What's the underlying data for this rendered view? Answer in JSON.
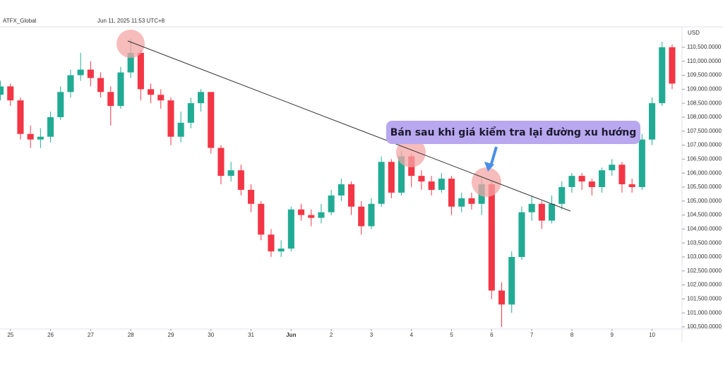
{
  "chart_data": {
    "type": "candlestick",
    "symbol": "ATFX_Global",
    "timestamp": "Jun 11, 2025 11:53 UTC+8",
    "currency": "USD",
    "annotation": "Bán sau khi giá kiểm tra lại đường xu hướng",
    "up_color": "#22ab94",
    "down_color": "#f23645",
    "grid": false,
    "xlim": [
      -0.26,
      16.73
    ],
    "xticks": [
      {
        "value": 0,
        "label": "25"
      },
      {
        "value": 1,
        "label": "26"
      },
      {
        "value": 2,
        "label": "27"
      },
      {
        "value": 3,
        "label": "28"
      },
      {
        "value": 4,
        "label": "29"
      },
      {
        "value": 5,
        "label": "30"
      },
      {
        "value": 6,
        "label": "31"
      },
      {
        "value": 7,
        "label": "Jun"
      },
      {
        "value": 8,
        "label": "2"
      },
      {
        "value": 9,
        "label": "3"
      },
      {
        "value": 10,
        "label": "4"
      },
      {
        "value": 11,
        "label": "5"
      },
      {
        "value": 12,
        "label": "6"
      },
      {
        "value": 13,
        "label": "7"
      },
      {
        "value": 14,
        "label": "8"
      },
      {
        "value": 15,
        "label": "9"
      },
      {
        "value": 16,
        "label": "10"
      }
    ],
    "ylim": [
      100450,
      111180
    ],
    "yticks": [
      {
        "value": 100500,
        "label": "100,500.0000"
      },
      {
        "value": 101000,
        "label": "101,000.0000"
      },
      {
        "value": 101500,
        "label": "101,500.0000"
      },
      {
        "value": 102000,
        "label": "102,000.0000"
      },
      {
        "value": 102500,
        "label": "102,500.0000"
      },
      {
        "value": 103000,
        "label": "103,000.0000"
      },
      {
        "value": 103500,
        "label": "103,500.0000"
      },
      {
        "value": 104000,
        "label": "104,000.0000"
      },
      {
        "value": 104500,
        "label": "104,500.0000"
      },
      {
        "value": 105000,
        "label": "105,000.0000"
      },
      {
        "value": 105500,
        "label": "105,500.0000"
      },
      {
        "value": 106000,
        "label": "106,000.0000"
      },
      {
        "value": 106500,
        "label": "106,500.0000"
      },
      {
        "value": 107000,
        "label": "107,000.0000"
      },
      {
        "value": 107500,
        "label": "107,500.0000"
      },
      {
        "value": 108000,
        "label": "108,000.0000"
      },
      {
        "value": 108500,
        "label": "108,500.0000"
      },
      {
        "value": 109000,
        "label": "109,000.0000"
      },
      {
        "value": 109500,
        "label": "109,500.0000"
      },
      {
        "value": 110000,
        "label": "110,000.0000"
      },
      {
        "value": 110500,
        "label": "110,500.0000"
      }
    ],
    "x": [
      -0.25,
      0,
      0.25,
      0.5,
      0.75,
      1,
      1.25,
      1.5,
      1.75,
      2,
      2.25,
      2.5,
      2.75,
      3,
      3.25,
      3.5,
      3.75,
      4,
      4.25,
      4.5,
      4.75,
      5,
      5.25,
      5.5,
      5.75,
      6,
      6.25,
      6.5,
      6.75,
      7,
      7.25,
      7.5,
      7.75,
      8,
      8.25,
      8.5,
      8.75,
      9,
      9.25,
      9.5,
      9.75,
      10,
      10.25,
      10.5,
      10.75,
      11,
      11.25,
      11.5,
      11.75,
      12,
      12.25,
      12.5,
      12.75,
      13,
      13.25,
      13.5,
      13.75,
      14,
      14.25,
      14.5,
      14.75,
      15,
      15.25,
      15.5,
      15.75,
      16,
      16.25,
      16.5
    ],
    "open": [
      108800,
      109100,
      108600,
      107400,
      107200,
      107300,
      108000,
      108900,
      109500,
      109700,
      109400,
      108900,
      108400,
      109600,
      110300,
      109000,
      108800,
      108600,
      107300,
      107800,
      108500,
      108900,
      106900,
      105900,
      106100,
      105400,
      104900,
      103800,
      103200,
      103300,
      104700,
      104500,
      104400,
      104600,
      105200,
      105600,
      104800,
      104100,
      104900,
      106400,
      105300,
      106600,
      105900,
      105700,
      105400,
      105800,
      104800,
      105100,
      104900,
      105600,
      101800,
      101300,
      103000,
      104600,
      104900,
      104300,
      104900,
      105500,
      105900,
      105700,
      105500,
      106100,
      106300,
      105600,
      105500,
      107200,
      108500,
      110500
    ],
    "high": [
      109300,
      109200,
      108700,
      107700,
      107600,
      108200,
      109100,
      109700,
      110300,
      110000,
      109600,
      109100,
      109800,
      110800,
      110400,
      109200,
      109000,
      108700,
      108200,
      108700,
      109000,
      108900,
      107000,
      106400,
      106300,
      105600,
      105000,
      104000,
      103600,
      104800,
      104900,
      104700,
      104900,
      105400,
      105800,
      105700,
      105000,
      105100,
      106600,
      106500,
      106800,
      106700,
      106100,
      105900,
      106000,
      105900,
      105300,
      105300,
      105800,
      105700,
      102100,
      103200,
      104800,
      105200,
      105000,
      105200,
      105700,
      106000,
      106000,
      105800,
      106200,
      106500,
      106400,
      105800,
      107400,
      108700,
      110700,
      110600
    ],
    "low": [
      108600,
      108400,
      107200,
      106900,
      106900,
      107100,
      107900,
      108700,
      109300,
      109100,
      108700,
      107700,
      108300,
      109400,
      108600,
      108500,
      108300,
      107000,
      107100,
      107600,
      108200,
      106700,
      105600,
      105700,
      105200,
      104600,
      103600,
      103000,
      103000,
      103200,
      104300,
      104100,
      104200,
      104500,
      105000,
      104500,
      103800,
      104000,
      104800,
      105100,
      105200,
      105500,
      105400,
      105200,
      105300,
      104500,
      104600,
      104700,
      104500,
      101500,
      100500,
      101000,
      102900,
      104300,
      104000,
      104200,
      104700,
      105300,
      105400,
      105200,
      105300,
      105900,
      105300,
      105300,
      105400,
      107000,
      108400,
      109000
    ],
    "close": [
      109100,
      108600,
      107400,
      107200,
      107300,
      108000,
      108900,
      109500,
      109700,
      109400,
      108900,
      108400,
      109600,
      110300,
      109000,
      108800,
      108600,
      107300,
      107800,
      108500,
      108900,
      106900,
      105900,
      106100,
      105400,
      104900,
      103800,
      103200,
      103300,
      104700,
      104500,
      104400,
      104600,
      105200,
      105600,
      104800,
      104100,
      104900,
      106400,
      105300,
      106600,
      105900,
      105700,
      105400,
      105800,
      104800,
      105100,
      104900,
      105600,
      101800,
      101300,
      103000,
      104600,
      104900,
      104300,
      104900,
      105500,
      105900,
      105700,
      105500,
      106100,
      106300,
      105600,
      105500,
      107200,
      108500,
      110500,
      109200
    ]
  }
}
